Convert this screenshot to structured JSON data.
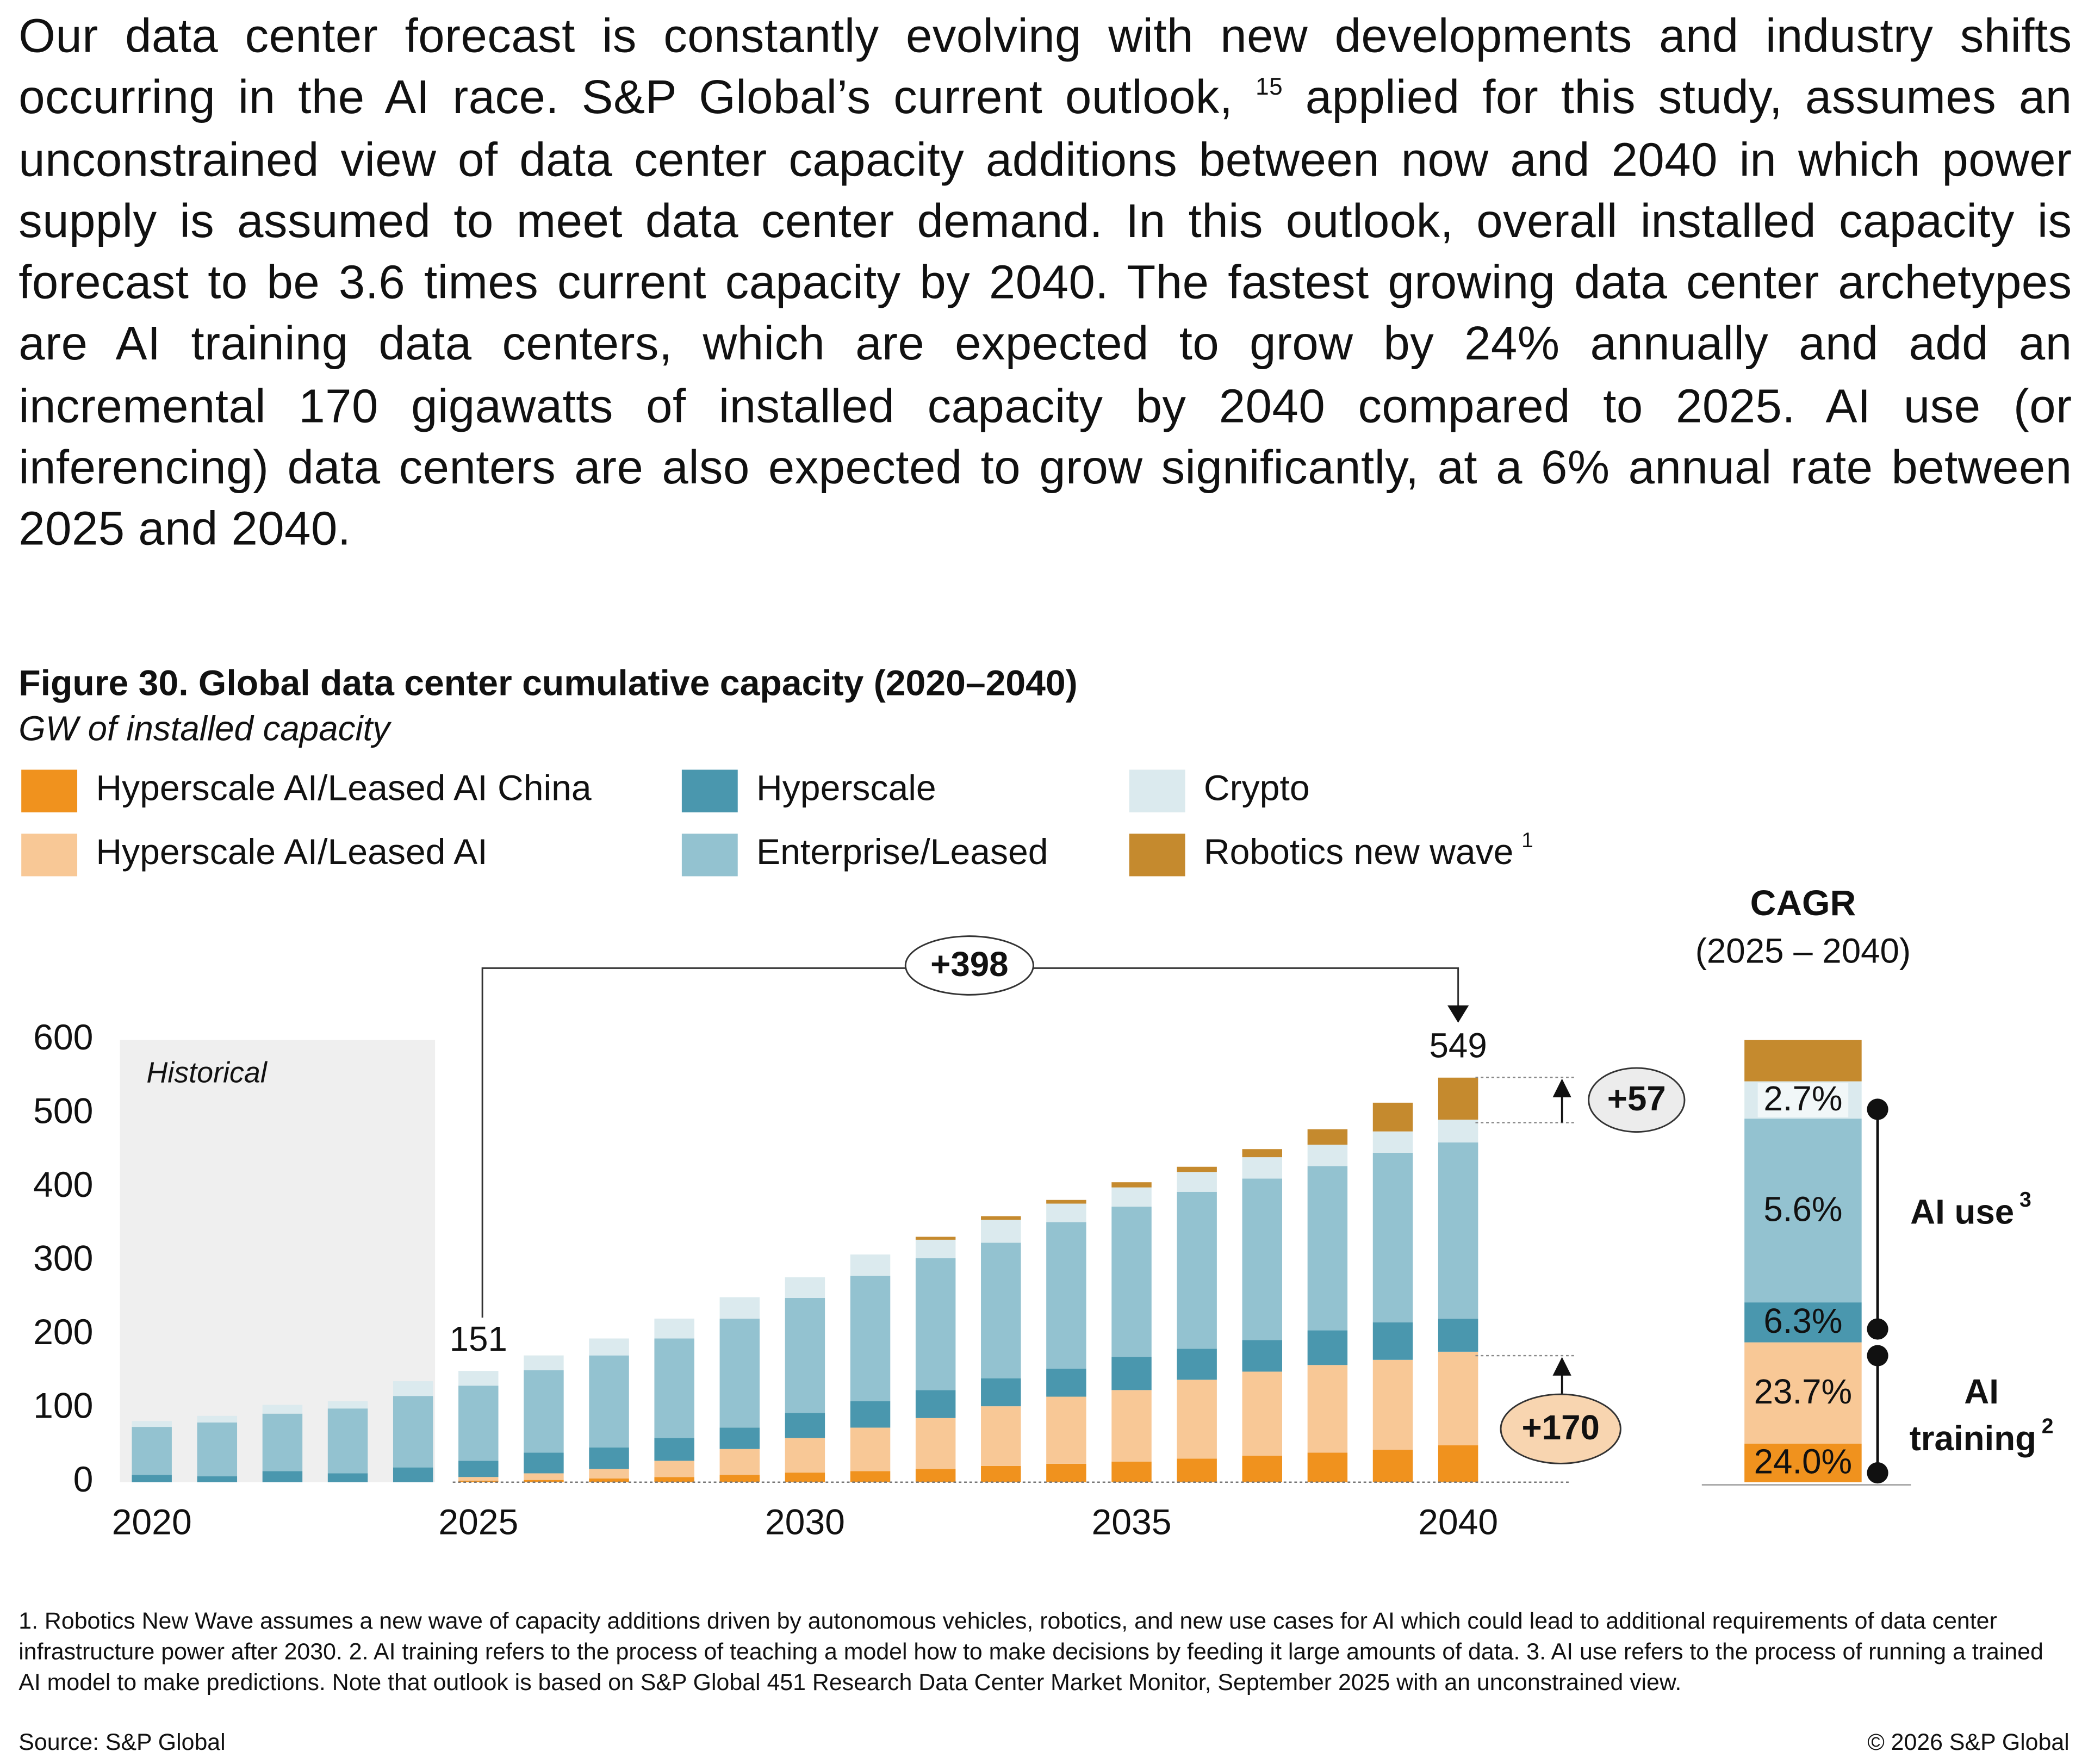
{
  "paragraph": [
    "Our data center forecast is constantly evolving with new developments and industry shifts occurring in the AI race. S&P Global’s current outlook, ",
    "15",
    " applied for this study, assumes an unconstrained view of data center capacity additions between now and 2040 in which power supply is assumed to meet data center demand. In this outlook, overall installed capacity is forecast to be 3.6 times current capacity by 2040. The fastest growing data center archetypes are AI training data centers, which are expected to grow by 24% annually and add an incremental 170 gigawatts of installed capacity by 2040 compared to 2025. AI use (or inferencing) data centers are also expected to grow significantly, at a 6% annual rate between 2025 and 2040."
  ],
  "chart_data": {
    "type": "stacked_bar",
    "title": "Figure 30. Global data center cumulative capacity (2020–2040)",
    "subtitle": "GW of installed capacity",
    "x": [
      2020,
      2021,
      2022,
      2023,
      2024,
      2025,
      2026,
      2027,
      2028,
      2029,
      2030,
      2031,
      2032,
      2033,
      2034,
      2035,
      2036,
      2037,
      2038,
      2039,
      2040
    ],
    "xlim": [
      2019.5,
      2041.7
    ],
    "xticks": [
      2020,
      2025,
      2030,
      2035,
      2040
    ],
    "ylim": [
      0,
      600
    ],
    "yticks": [
      0,
      100,
      200,
      300,
      400,
      500,
      600
    ],
    "series": [
      {
        "name": "Hyperscale AI/Leased AI China",
        "color": "#f0921e",
        "values": [
          0,
          0,
          0,
          0,
          0,
          2,
          3,
          5,
          7,
          10,
          13,
          15,
          18,
          22,
          25,
          28,
          32,
          36,
          40,
          44,
          50
        ]
      },
      {
        "name": "Hyperscale AI/Leased AI",
        "color": "#f8c896",
        "values": [
          0,
          0,
          0,
          0,
          0,
          5,
          9,
          13,
          22,
          35,
          47,
          59,
          69,
          81,
          91,
          97,
          107,
          114,
          119,
          122,
          127
        ]
      },
      {
        "name": "Hyperscale",
        "color": "#4a97ae",
        "values": [
          10,
          8,
          15,
          12,
          20,
          22,
          28,
          29,
          31,
          29,
          34,
          36,
          38,
          38,
          38,
          45,
          42,
          43,
          47,
          51,
          45
        ]
      },
      {
        "name": "Enterprise/Leased",
        "color": "#93c2d0",
        "values": [
          65,
          73,
          78,
          88,
          97,
          102,
          112,
          125,
          135,
          148,
          156,
          170,
          179,
          184,
          199,
          204,
          213,
          219,
          223,
          230,
          239
        ]
      },
      {
        "name": "Crypto",
        "color": "#dbeaee",
        "values": [
          8,
          9,
          12,
          10,
          20,
          20,
          20,
          23,
          27,
          29,
          28,
          29,
          25,
          31,
          25,
          26,
          27,
          29,
          29,
          29,
          31
        ]
      },
      {
        "name": "Robotics new wave",
        "note": "1",
        "color": "#c58a2e",
        "values": [
          0,
          0,
          0,
          0,
          0,
          0,
          0,
          0,
          0,
          0,
          0,
          0,
          4,
          5,
          5,
          7,
          7,
          11,
          21,
          39,
          57
        ]
      }
    ],
    "historical": {
      "label": "Historical",
      "xlim": [
        2019.5,
        2024.5
      ]
    },
    "totals": [
      {
        "x": 2025,
        "value": 151
      },
      {
        "x": 2040,
        "value": 549
      }
    ],
    "changes": [
      "+398",
      "+57",
      "+170"
    ],
    "cagr": {
      "title": "CAGR",
      "subtitle": "(2025 – 2040)",
      "values": [
        24.0,
        23.7,
        6.3,
        5.6,
        2.7,
        null
      ],
      "value_labels": [
        "24.0%",
        "23.7%",
        "6.3%",
        "5.6%",
        "2.7%",
        null
      ],
      "groups": [
        {
          "lines": [
            "AI use"
          ],
          "note": "3"
        },
        {
          "lines": [
            "AI",
            "training"
          ],
          "note": "2"
        }
      ]
    }
  },
  "footnotes": "1. Robotics New Wave assumes a new wave of capacity additions driven by autonomous vehicles, robotics, and new use cases for AI which could lead to additional requirements of data center infrastructure power after 2030. 2. AI training refers to the process of teaching a model how to make decisions by feeding it large amounts of data. 3. AI use refers to the process of running a trained AI model to make predictions. Note that outlook is based on S&P Global 451 Research Data Center Market Monitor, September 2025 with an unconstrained view.",
  "source": "Source: S&P Global",
  "copyright": "© 2026 S&P Global"
}
